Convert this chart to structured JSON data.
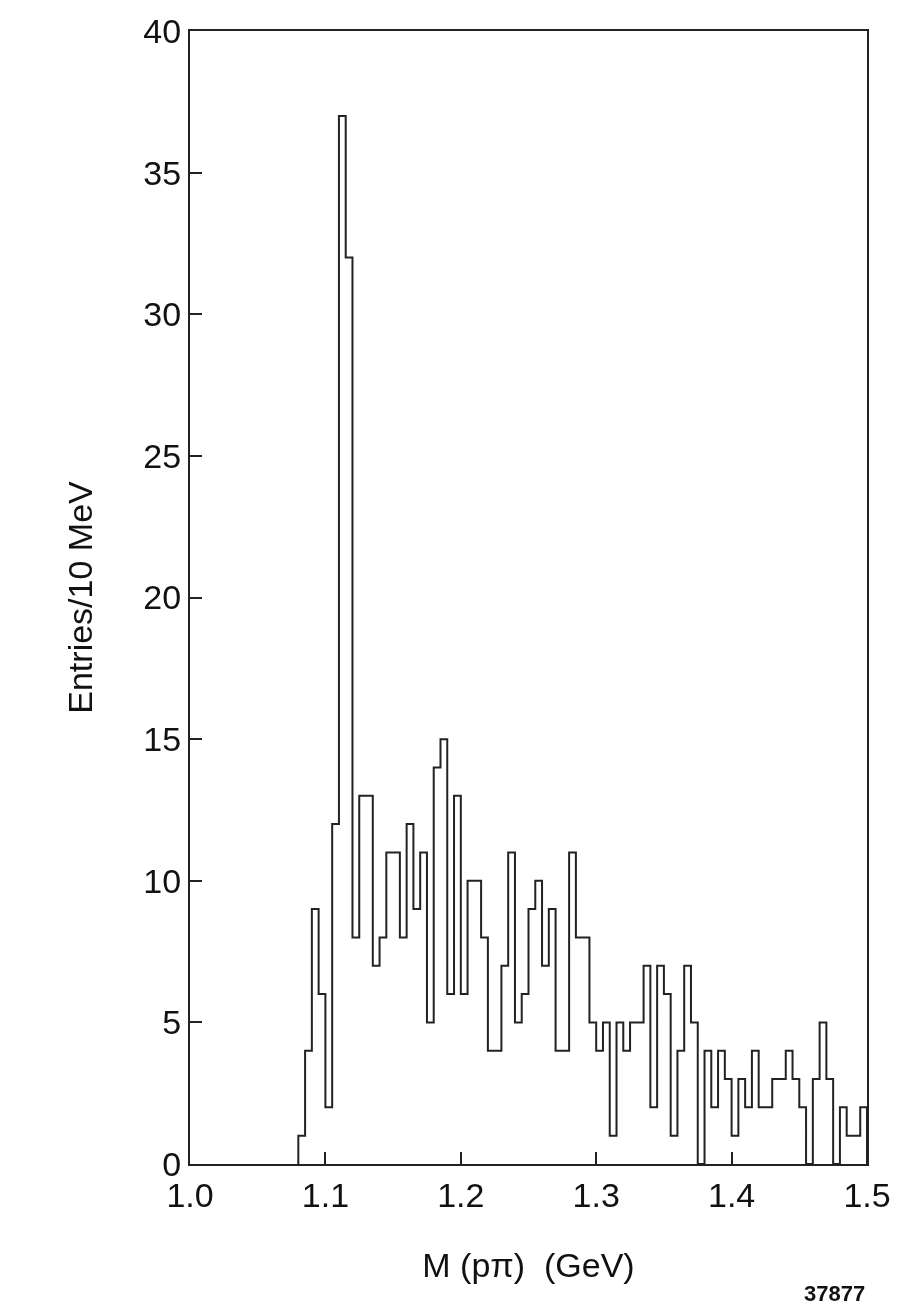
{
  "chart_data": {
    "type": "histogram",
    "xlabel": "M (pπ)  (GeV)",
    "ylabel": "Entries/10 MeV",
    "annotations": [
      "37877"
    ],
    "bins": [
      1.08,
      1.085,
      1.09,
      1.095,
      1.1,
      1.105,
      1.11,
      1.115,
      1.12,
      1.125,
      1.13,
      1.135,
      1.14,
      1.145,
      1.15,
      1.155,
      1.16,
      1.165,
      1.17,
      1.175,
      1.18,
      1.185,
      1.19,
      1.195,
      1.2,
      1.205,
      1.21,
      1.215,
      1.22,
      1.225,
      1.23,
      1.235,
      1.24,
      1.245,
      1.25,
      1.255,
      1.26,
      1.265,
      1.27,
      1.275,
      1.28,
      1.285,
      1.29,
      1.295,
      1.3,
      1.305,
      1.31,
      1.315,
      1.32,
      1.325,
      1.33,
      1.335,
      1.34,
      1.345,
      1.35,
      1.355,
      1.36,
      1.365,
      1.37,
      1.375,
      1.38,
      1.385,
      1.39,
      1.395,
      1.4,
      1.405,
      1.41,
      1.415,
      1.42,
      1.425,
      1.43,
      1.435,
      1.44,
      1.445,
      1.45,
      1.455,
      1.46,
      1.465,
      1.47,
      1.475,
      1.48,
      1.485,
      1.49,
      1.495,
      1.5
    ],
    "values": [
      1,
      4,
      9,
      6,
      2,
      12,
      37,
      32,
      8,
      13,
      13,
      7,
      8,
      11,
      11,
      8,
      12,
      9,
      11,
      5,
      14,
      15,
      6,
      13,
      6,
      10,
      10,
      8,
      4,
      4,
      7,
      11,
      5,
      6,
      9,
      10,
      7,
      9,
      4,
      4,
      11,
      8,
      8,
      5,
      4,
      5,
      1,
      5,
      4,
      5,
      5,
      7,
      2,
      7,
      6,
      1,
      4,
      7,
      5,
      0,
      4,
      2,
      4,
      3,
      1,
      3,
      2,
      4,
      2,
      2,
      3,
      3,
      4,
      3,
      2,
      0,
      3,
      5,
      3,
      0,
      2,
      1,
      1,
      2
    ],
    "color": "#222222",
    "xlim": [
      1.0,
      1.5
    ],
    "xticks": [
      {
        "value": 1.0,
        "label": "1.0"
      },
      1.1,
      1.2,
      1.3,
      1.4,
      1.5
    ],
    "ylim": [
      0,
      40
    ],
    "yticks": [
      0,
      5,
      10,
      15,
      20,
      25,
      30,
      35,
      40
    ]
  }
}
